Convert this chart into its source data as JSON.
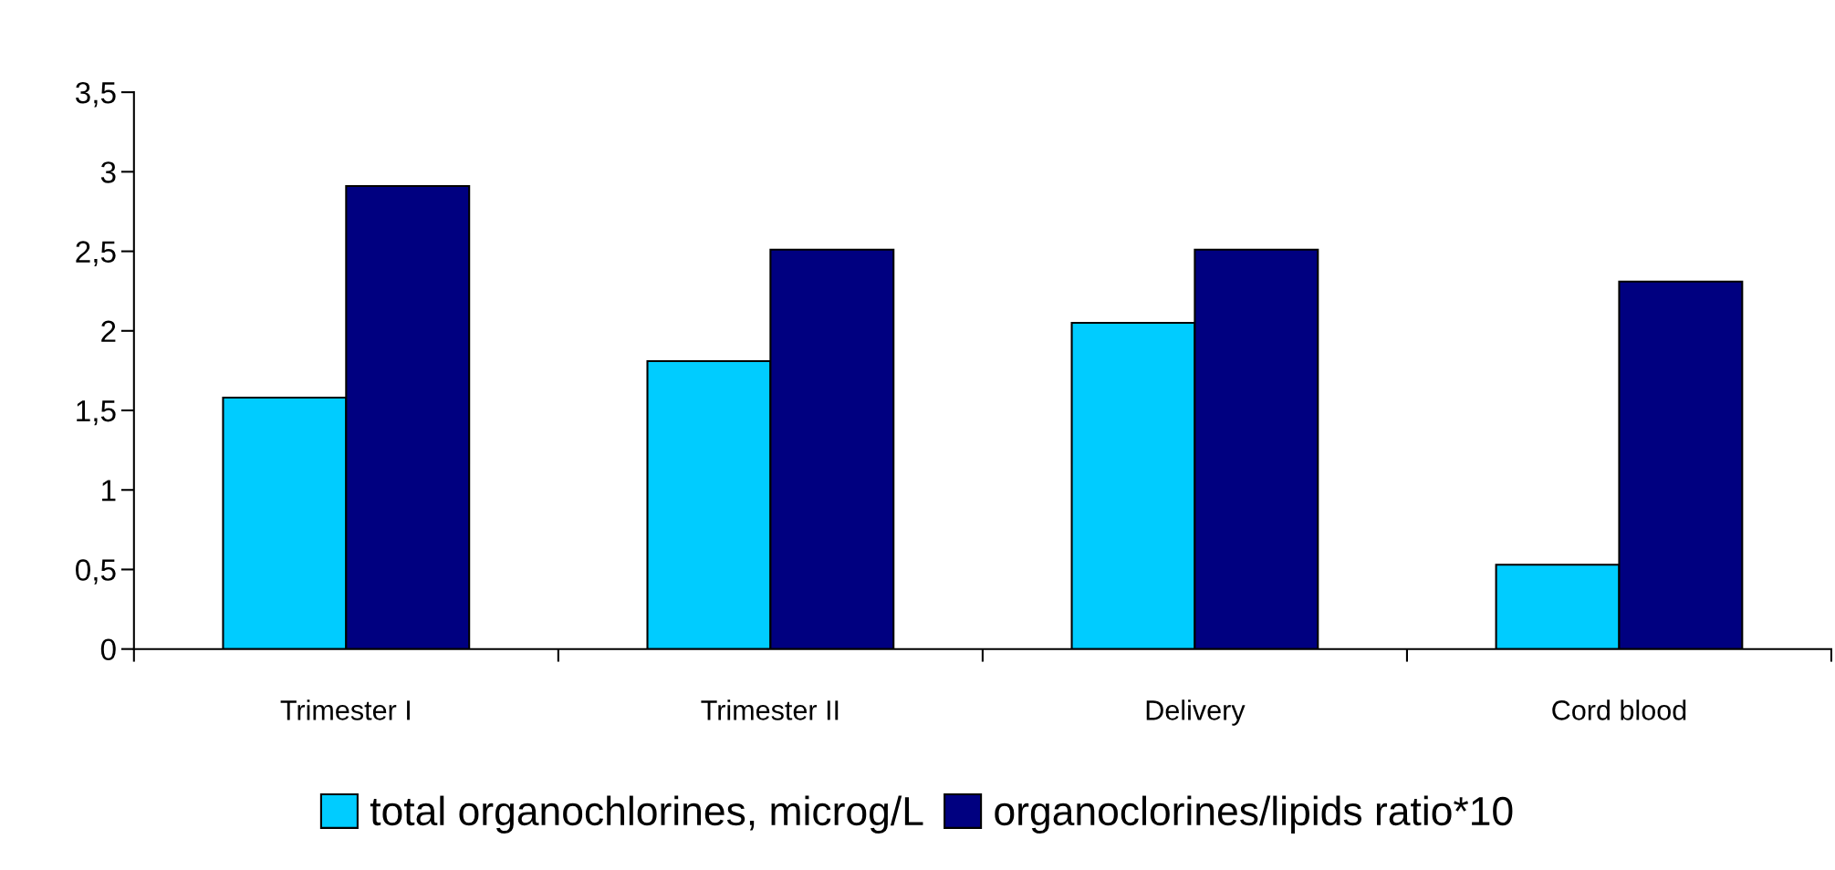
{
  "chart_data": {
    "type": "bar",
    "categories": [
      "Trimester I",
      "Trimester II",
      "Delivery",
      "Cord blood"
    ],
    "series": [
      {
        "name": "total organochlorines, microg/L",
        "color": "#00ccff",
        "values": [
          1.58,
          1.81,
          2.05,
          0.53
        ]
      },
      {
        "name": "organoclorines/lipids ratio*10",
        "color": "#000080",
        "values": [
          2.91,
          2.51,
          2.51,
          2.31
        ]
      }
    ],
    "ylim": [
      0,
      3.5
    ],
    "yticks": [
      0,
      {
        "value": 0.5,
        "label": "0,5"
      },
      1,
      {
        "value": 1.5,
        "label": "1,5"
      },
      2,
      {
        "value": 2.5,
        "label": "2,5"
      },
      3,
      {
        "value": 3.5,
        "label": "3,5"
      }
    ],
    "grid": false,
    "legend": "bottom"
  }
}
